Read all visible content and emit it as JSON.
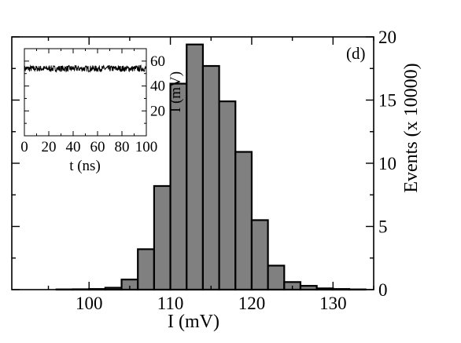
{
  "chart_data": [
    {
      "type": "bar",
      "panel_label": "(d)",
      "xlabel": "I (mV)",
      "ylabel": "Events (x 10000)",
      "xlim": [
        90.5,
        135
      ],
      "ylim": [
        0,
        20
      ],
      "x_ticks": [
        100,
        110,
        120,
        130
      ],
      "y_ticks": [
        0,
        5,
        10,
        15,
        20
      ],
      "bin_width": 2,
      "bins_x": [
        97,
        99,
        101,
        103,
        105,
        107,
        109,
        111,
        113,
        115,
        117,
        119,
        121,
        123,
        125,
        127,
        129,
        131,
        133
      ],
      "values": [
        0.02,
        0.03,
        0.05,
        0.15,
        0.8,
        3.2,
        8.2,
        16.3,
        19.4,
        17.7,
        14.9,
        10.9,
        5.5,
        1.9,
        0.6,
        0.3,
        0.1,
        0.05,
        0.02
      ],
      "fill_color": "#808080",
      "edge_color": "#000000"
    },
    {
      "type": "line",
      "role": "inset",
      "xlabel": "t (ns)",
      "ylabel": "I (mV)",
      "xlim": [
        0,
        100
      ],
      "ylim": [
        0,
        70
      ],
      "x_ticks": [
        0,
        20,
        40,
        60,
        80,
        100
      ],
      "y_ticks": [
        20,
        40,
        60
      ],
      "y_mean": 54,
      "y_noise": 2.5,
      "color": "#000000"
    }
  ]
}
